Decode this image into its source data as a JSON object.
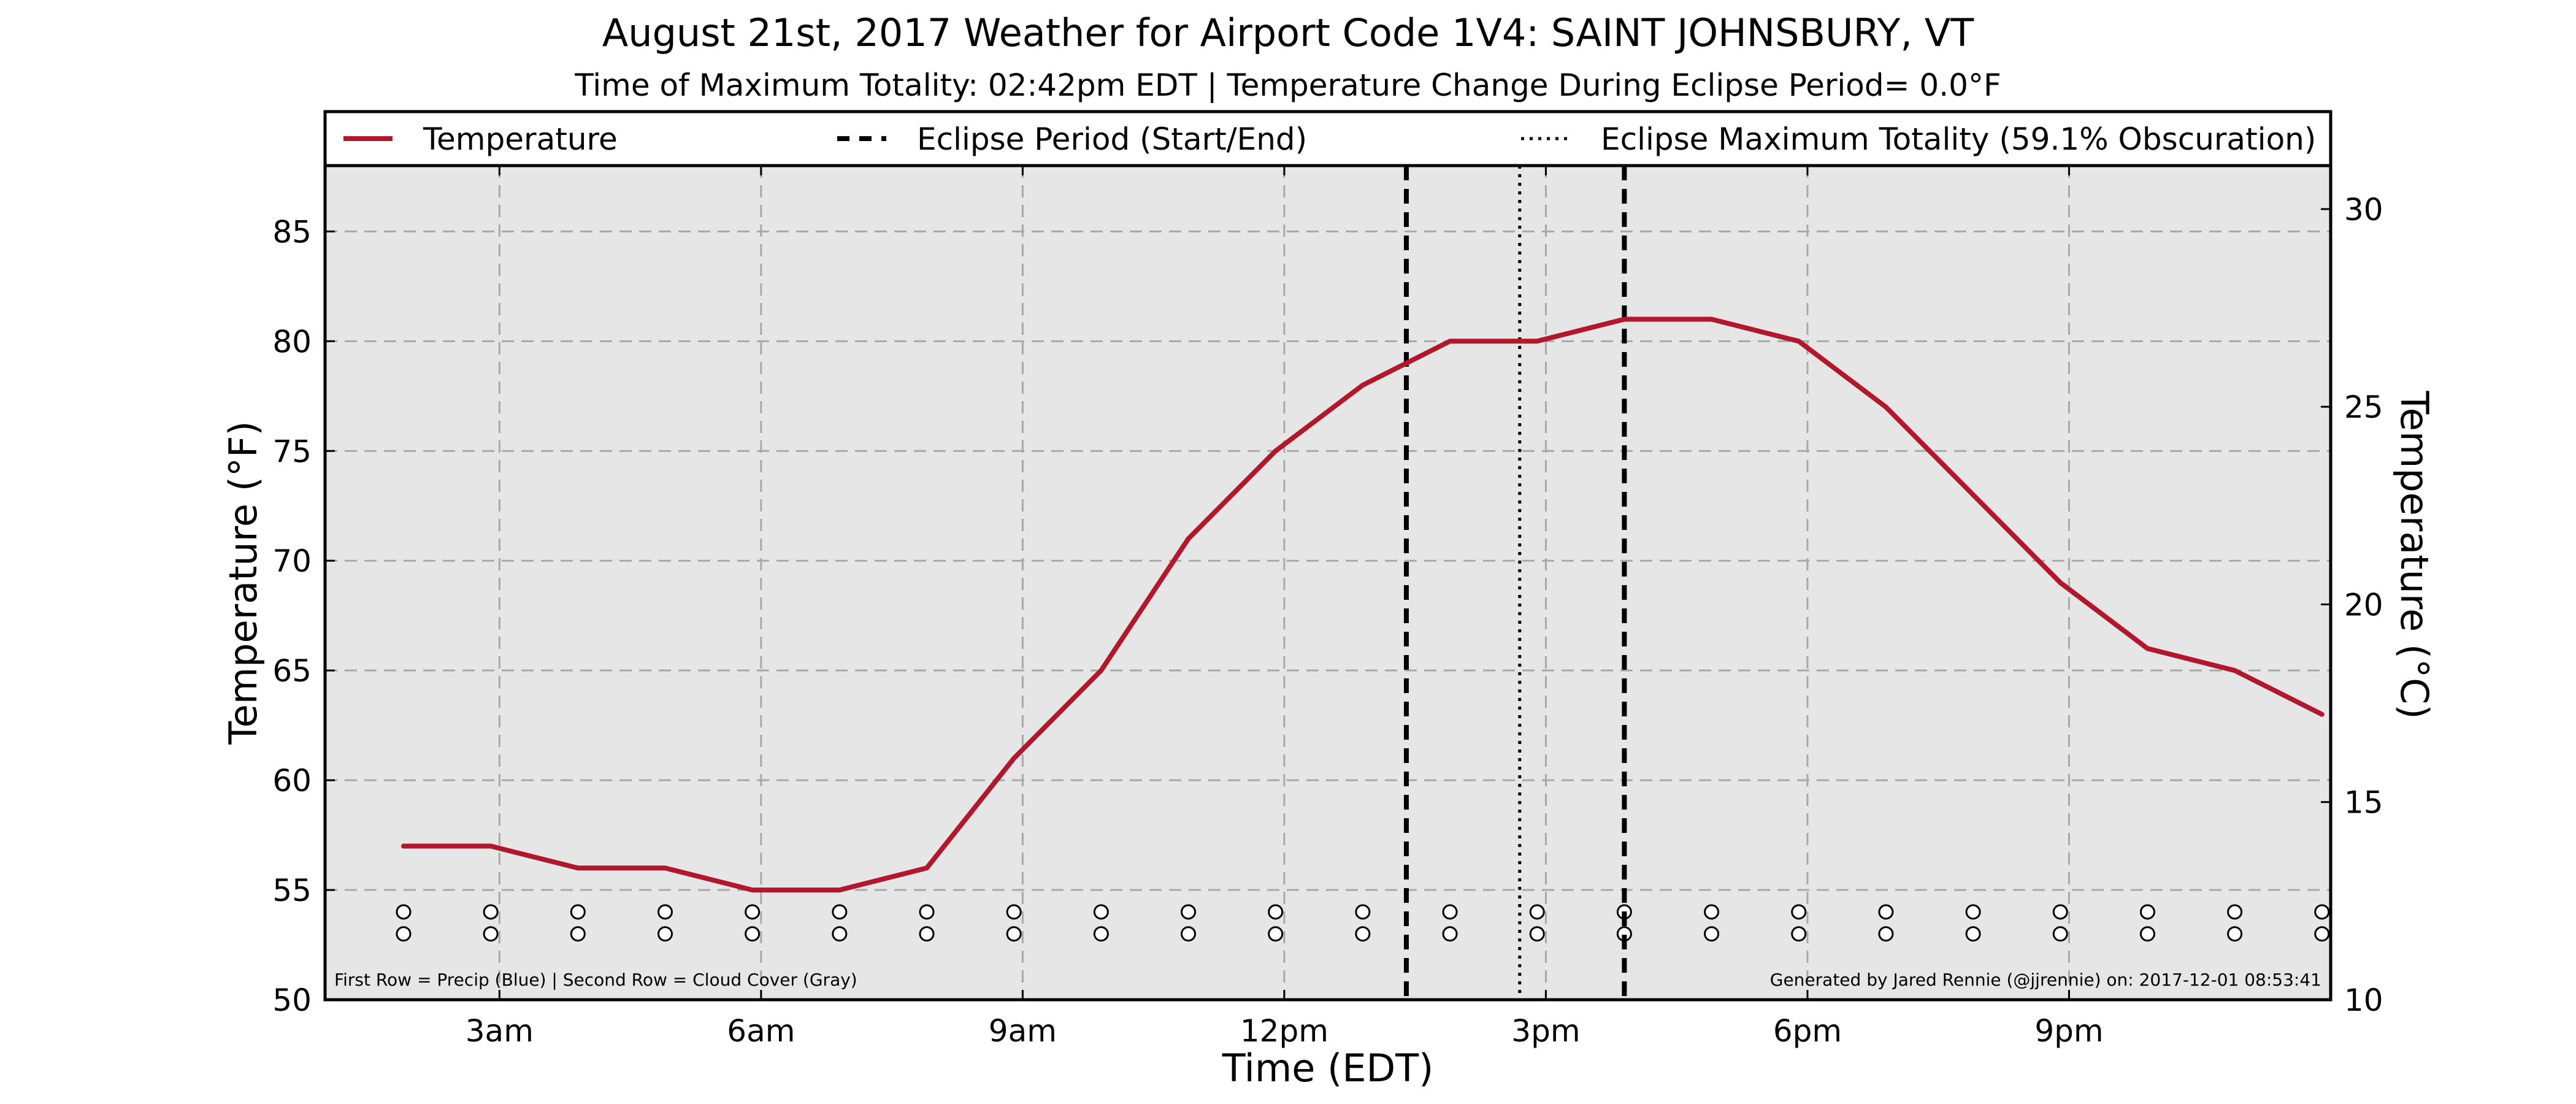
{
  "chart_data": {
    "type": "line",
    "title": "August 21st, 2017 Weather for Airport Code 1V4: SAINT JOHNSBURY, VT",
    "subtitle": "Time of Maximum Totality: 02:42pm EDT | Temperature Change During Eclipse Period= 0.0°F",
    "xlabel": "Time (EDT)",
    "ylabel": "Temperature (°F)",
    "ylabel_right": "Temperature (°C)",
    "xlim": [
      1.0,
      24.0
    ],
    "ylim": [
      50,
      88
    ],
    "ylim_right": [
      10,
      31.1
    ],
    "x_ticks": [
      {
        "value": 3,
        "label": "3am"
      },
      {
        "value": 6,
        "label": "6am"
      },
      {
        "value": 9,
        "label": "9am"
      },
      {
        "value": 12,
        "label": "12pm"
      },
      {
        "value": 15,
        "label": "3pm"
      },
      {
        "value": 18,
        "label": "6pm"
      },
      {
        "value": 21,
        "label": "9pm"
      }
    ],
    "y_ticks": [
      50,
      55,
      60,
      65,
      70,
      75,
      80,
      85
    ],
    "y_ticks_right": [
      10,
      15,
      20,
      25,
      30
    ],
    "grid": true,
    "legend_position": "top",
    "legend": [
      {
        "label": "Temperature",
        "style": "solid"
      },
      {
        "label": "Eclipse Period (Start/End)",
        "style": "dashed"
      },
      {
        "label": "Eclipse Maximum Totality (59.1% Obscuration)",
        "style": "dotted"
      }
    ],
    "series": [
      {
        "name": "Temperature",
        "color": "#b2182b",
        "x": [
          1.9,
          2.9,
          3.9,
          4.9,
          5.9,
          6.9,
          7.9,
          8.9,
          9.9,
          10.9,
          11.9,
          12.9,
          13.9,
          14.9,
          15.9,
          16.9,
          17.9,
          18.9,
          19.9,
          20.9,
          21.9,
          22.9,
          23.9
        ],
        "y": [
          57,
          57,
          56,
          56,
          55,
          55,
          56,
          61,
          65,
          71,
          75,
          78,
          80,
          80,
          81,
          81,
          80,
          77,
          73,
          69,
          66,
          65,
          63
        ]
      }
    ],
    "eclipse_start": 13.4,
    "eclipse_end": 15.9,
    "eclipse_max": 14.7,
    "markers": {
      "x": [
        1.9,
        2.9,
        3.9,
        4.9,
        5.9,
        6.9,
        7.9,
        8.9,
        9.9,
        10.9,
        11.9,
        12.9,
        13.9,
        14.9,
        15.9,
        16.9,
        17.9,
        18.9,
        19.9,
        20.9,
        21.9,
        22.9,
        23.9
      ],
      "row1_y": 54,
      "row2_y": 53
    },
    "footnote_left": "First Row = Precip (Blue) | Second Row = Cloud Cover (Gray)",
    "footnote_right": "Generated by Jared Rennie (@jjrennie) on: 2017-12-01 08:53:41"
  }
}
